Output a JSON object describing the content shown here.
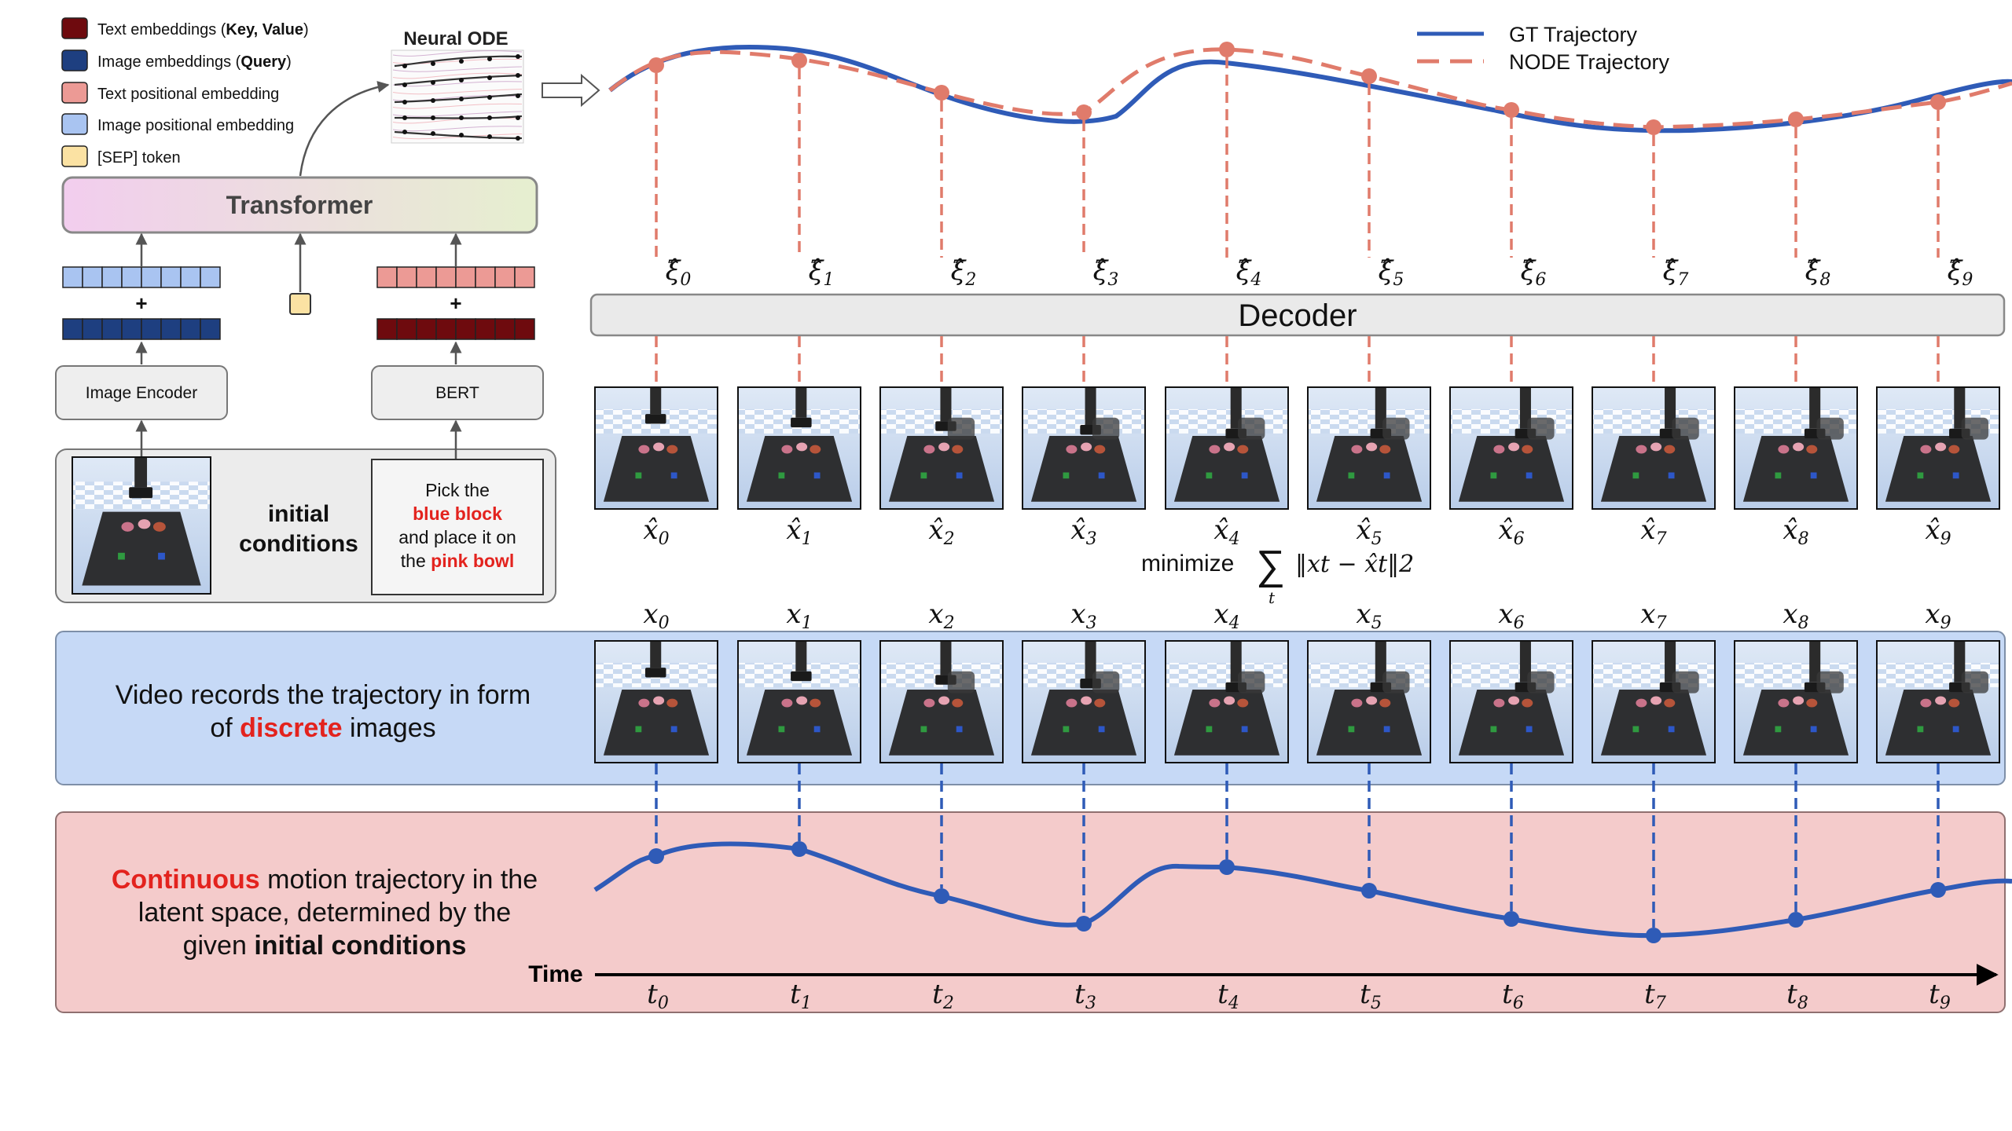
{
  "colors": {
    "gt": "#2f5bb7",
    "node": "#e07b6b",
    "text_emb": "#6e0a0e",
    "image_emb": "#1e3f80",
    "text_pos": "#ec9a95",
    "image_pos": "#a9c4f1",
    "sep": "#fbe2a3",
    "video_panel": "#c6d9f6",
    "latent_panel": "#f4cbcb",
    "cond_panel": "#ececec",
    "red_text": "#e3231e"
  },
  "legend_left": [
    {
      "key": "text_emb",
      "label": "Text embeddings (",
      "bold": "Key, Value",
      "tail": ")"
    },
    {
      "key": "image_emb",
      "label": "Image embeddings (",
      "bold": "Query",
      "tail": ")"
    },
    {
      "key": "text_pos",
      "label": "Text positional embedding",
      "bold": "",
      "tail": ""
    },
    {
      "key": "image_pos",
      "label": "Image positional embedding",
      "bold": "",
      "tail": ""
    },
    {
      "key": "sep",
      "label": "[SEP] token",
      "bold": "",
      "tail": ""
    }
  ],
  "neural_ode": {
    "title": "Neural ODE"
  },
  "transformer": {
    "label": "Transformer"
  },
  "image_encoder": {
    "label": "Image Encoder"
  },
  "bert": {
    "label": "BERT"
  },
  "conditions": {
    "label_line1": "initial",
    "label_line2": "conditions",
    "instruction": [
      [
        {
          "t": "Pick the",
          "red": false
        }
      ],
      [
        {
          "t": "blue block",
          "red": true
        }
      ],
      [
        {
          "t": "and place it on",
          "red": false
        }
      ],
      [
        {
          "t": "the ",
          "red": false
        },
        {
          "t": "pink bowl",
          "red": true
        }
      ]
    ]
  },
  "plus": "+",
  "decoder": {
    "label": "Decoder"
  },
  "legend_right": {
    "gt": "GT Trajectory",
    "node": "NODE Trajectory"
  },
  "steps": {
    "xi_hat": [
      "ξ̂0",
      "ξ̂1",
      "ξ̂2",
      "ξ̂3",
      "ξ̂4",
      "ξ̂5",
      "ξ̂6",
      "ξ̂7",
      "ξ̂8",
      "ξ̂9"
    ],
    "x_hat": [
      "x̂0",
      "x̂1",
      "x̂2",
      "x̂3",
      "x̂4",
      "x̂5",
      "x̂6",
      "x̂7",
      "x̂8",
      "x̂9"
    ],
    "x": [
      "x0",
      "x1",
      "x2",
      "x3",
      "x4",
      "x5",
      "x6",
      "x7",
      "x8",
      "x9"
    ],
    "t": [
      "t0",
      "t1",
      "t2",
      "t3",
      "t4",
      "t5",
      "t6",
      "t7",
      "t8",
      "t9"
    ]
  },
  "minimize": {
    "word": "minimize",
    "sub": "t",
    "expr": "‖xt − x̂t‖2"
  },
  "video_panel": {
    "line1": "Video records the trajectory in form",
    "line2_pre": "of ",
    "line2_red": "discrete",
    "line2_post": " images"
  },
  "latent_panel": {
    "line1_red": "Continuous",
    "line1_post": " motion trajectory in the",
    "line2": "latent space, determined by the",
    "line3_pre": "given ",
    "line3_bold": "initial conditions"
  },
  "time_label": "Time"
}
